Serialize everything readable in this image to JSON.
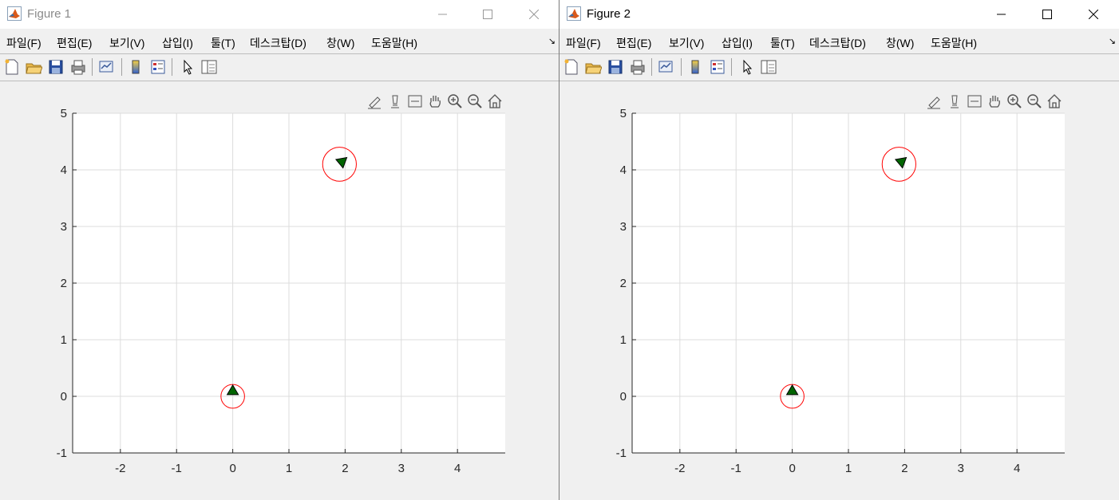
{
  "windows": [
    {
      "title": "Figure 1",
      "active": false,
      "menu": [
        "파일(F)",
        "편집(E)",
        "보기(V)",
        "삽입(I)",
        "툴(T)",
        "데스크탑(D)",
        "창(W)",
        "도움말(H)"
      ],
      "menu_arrow": "↘"
    },
    {
      "title": "Figure 2",
      "active": true,
      "menu": [
        "파일(F)",
        "편집(E)",
        "보기(V)",
        "삽입(I)",
        "툴(T)",
        "데스크탑(D)",
        "창(W)",
        "도움말(H)"
      ],
      "menu_arrow": "↘"
    }
  ],
  "toolbar_icons": [
    "new-figure-icon",
    "open-file-icon",
    "save-icon",
    "print-icon",
    "link-plot-icon",
    "insert-colorbar-icon",
    "insert-legend-icon",
    "edit-plot-arrow-icon",
    "property-inspector-icon"
  ],
  "axes_toolbar_icons": [
    "brush-icon",
    "data-cursor-icon",
    "legend-toggle-icon",
    "pan-hand-icon",
    "zoom-in-icon",
    "zoom-out-icon",
    "home-icon"
  ],
  "colors": {
    "circle": "#ff0000",
    "marker_fill": "#006400",
    "marker_edge": "#000000",
    "grid": "#dcdcdc"
  },
  "chart_data": [
    {
      "type": "scatter",
      "xlim": [
        -2.85,
        4.85
      ],
      "ylim": [
        -1,
        5
      ],
      "xticks": [
        -2,
        -1,
        0,
        1,
        2,
        3,
        4
      ],
      "yticks": [
        -1,
        0,
        1,
        2,
        3,
        4,
        5
      ],
      "xtick_labels": [
        "-2",
        "-1",
        "0",
        "1",
        "2",
        "3",
        "4"
      ],
      "ytick_labels": [
        "-1",
        "0",
        "1",
        "2",
        "3",
        "4",
        "5"
      ],
      "grid": true,
      "markers": [
        {
          "shape": "triangle",
          "x": 0,
          "y": 0.1,
          "heading_deg": 90,
          "circle_center": [
            0,
            0
          ],
          "circle_radius": 0.21
        },
        {
          "shape": "triangle",
          "x": 1.93,
          "y": 4.15,
          "heading_deg": 160,
          "circle_center": [
            1.9,
            4.1
          ],
          "circle_radius": 0.3
        }
      ]
    },
    {
      "type": "scatter",
      "xlim": [
        -2.85,
        4.85
      ],
      "ylim": [
        -1,
        5
      ],
      "xticks": [
        -2,
        -1,
        0,
        1,
        2,
        3,
        4
      ],
      "yticks": [
        -1,
        0,
        1,
        2,
        3,
        4,
        5
      ],
      "xtick_labels": [
        "-2",
        "-1",
        "0",
        "1",
        "2",
        "3",
        "4"
      ],
      "ytick_labels": [
        "-1",
        "0",
        "1",
        "2",
        "3",
        "4",
        "5"
      ],
      "grid": true,
      "markers": [
        {
          "shape": "triangle",
          "x": 0,
          "y": 0.1,
          "heading_deg": 90,
          "circle_center": [
            0,
            0
          ],
          "circle_radius": 0.21
        },
        {
          "shape": "triangle",
          "x": 1.93,
          "y": 4.15,
          "heading_deg": 160,
          "circle_center": [
            1.9,
            4.1
          ],
          "circle_radius": 0.3
        }
      ]
    }
  ]
}
